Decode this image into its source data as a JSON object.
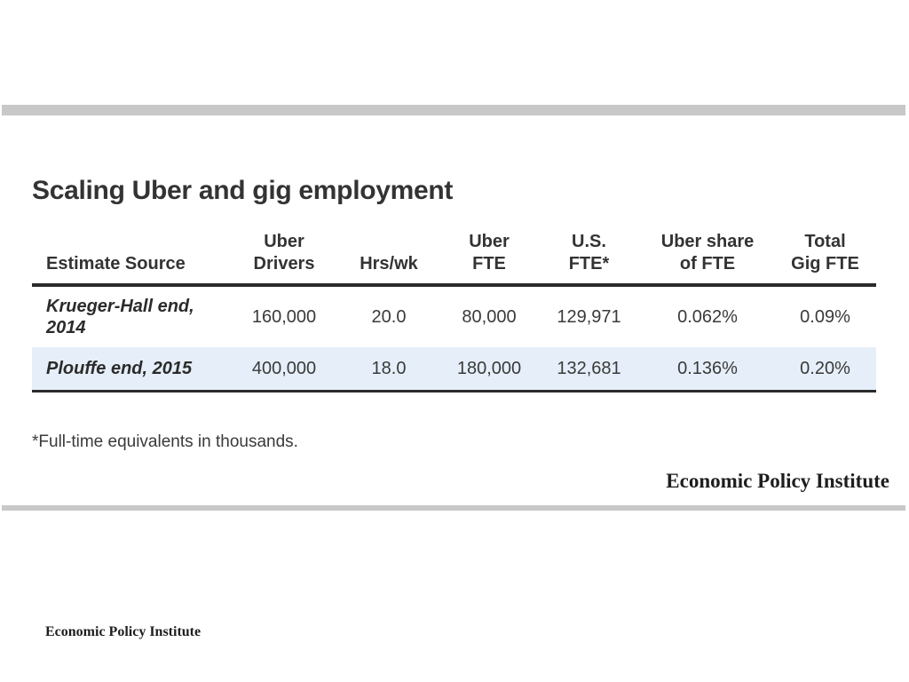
{
  "chart_data": {
    "type": "table",
    "title": "Scaling Uber and gig employment",
    "columns": [
      [
        "Estimate Source"
      ],
      [
        "Uber",
        "Drivers"
      ],
      [
        "Hrs/wk"
      ],
      [
        "Uber",
        "FTE"
      ],
      [
        "U.S.",
        "FTE*"
      ],
      [
        "Uber share",
        "of FTE"
      ],
      [
        "Total",
        "Gig FTE"
      ]
    ],
    "rows": [
      {
        "source": [
          "Krueger-Hall end,",
          "2014"
        ],
        "drivers": "160,000",
        "hrs_wk": "20.0",
        "uber_fte": "80,000",
        "us_fte": "129,971",
        "uber_share": "0.062%",
        "total_gig": "0.09%"
      },
      {
        "source": [
          "Plouffe end, 2015"
        ],
        "drivers": "400,000",
        "hrs_wk": "18.0",
        "uber_fte": "180,000",
        "us_fte": "132,681",
        "uber_share": "0.136%",
        "total_gig": "0.20%"
      }
    ],
    "highlight_row_color": "#e6eff9",
    "footnote": "*Full-time equivalents in thousands."
  },
  "branding": {
    "main": "Economic Policy Institute",
    "small": "Economic Policy Institute"
  }
}
